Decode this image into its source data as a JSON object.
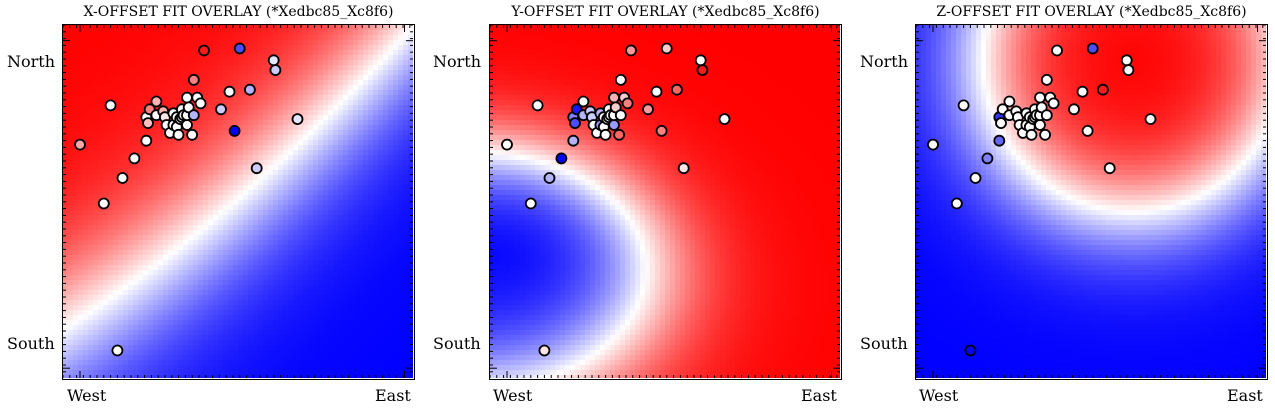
{
  "chart_data": [
    {
      "type": "heatmap",
      "title": "X-OFFSET FIT OVERLAY (*Xedbc85_Xc8f6)",
      "x_tick_labels": [
        "West",
        "East"
      ],
      "y_tick_labels": [
        "North",
        "South"
      ],
      "colormap": [
        "#0000ff",
        "#ffffff",
        "#ff0000"
      ],
      "value_range": [
        -1,
        1
      ],
      "field": {
        "peak_value": 1,
        "peak_location": "top-left",
        "trough_value": -1,
        "trough_location": "bottom-right"
      },
      "points": [
        {
          "x": -0.93,
          "y": 0.47,
          "v": 0.35
        },
        {
          "x": -0.75,
          "y": 0.67,
          "v": 0.0
        },
        {
          "x": -0.79,
          "y": 0.17,
          "v": 0.0
        },
        {
          "x": -0.61,
          "y": 0.4,
          "v": 0.0
        },
        {
          "x": -0.54,
          "y": 0.61,
          "v": 0.0
        },
        {
          "x": -0.54,
          "y": 0.49,
          "v": 0.0
        },
        {
          "x": -0.53,
          "y": 0.58,
          "v": 0.25
        },
        {
          "x": -0.52,
          "y": 0.65,
          "v": 0.5
        },
        {
          "x": -0.48,
          "y": 0.69,
          "v": 0.3
        },
        {
          "x": -0.48,
          "y": 0.62,
          "v": 0.0
        },
        {
          "x": -0.44,
          "y": 0.64,
          "v": 0.3
        },
        {
          "x": -0.43,
          "y": 0.61,
          "v": 0.1
        },
        {
          "x": -0.42,
          "y": 0.57,
          "v": 0.0
        },
        {
          "x": -0.4,
          "y": 0.53,
          "v": 0.0
        },
        {
          "x": -0.38,
          "y": 0.57,
          "v": 0.0
        },
        {
          "x": -0.38,
          "y": 0.63,
          "v": 0.0
        },
        {
          "x": -0.36,
          "y": 0.61,
          "v": 0.0
        },
        {
          "x": -0.36,
          "y": 0.56,
          "v": 0.0
        },
        {
          "x": -0.35,
          "y": 0.52,
          "v": 0.0
        },
        {
          "x": -0.34,
          "y": 0.6,
          "v": 0.0
        },
        {
          "x": -0.33,
          "y": 0.61,
          "v": 0.0
        },
        {
          "x": -0.33,
          "y": 0.65,
          "v": 0.0
        },
        {
          "x": -0.32,
          "y": 0.62,
          "v": 0.1
        },
        {
          "x": -0.3,
          "y": 0.57,
          "v": 0.0
        },
        {
          "x": -0.3,
          "y": 0.62,
          "v": 0.0
        },
        {
          "x": -0.3,
          "y": 0.71,
          "v": 0.0
        },
        {
          "x": -0.29,
          "y": 0.66,
          "v": 0.0
        },
        {
          "x": -0.27,
          "y": 0.52,
          "v": 0.0
        },
        {
          "x": -0.26,
          "y": 0.62,
          "v": -0.3
        },
        {
          "x": -0.26,
          "y": 0.8,
          "v": 0.5
        },
        {
          "x": -0.24,
          "y": 0.71,
          "v": 0.0
        },
        {
          "x": -0.22,
          "y": 0.68,
          "v": 0.0
        },
        {
          "x": -0.2,
          "y": 0.95,
          "v": 0.9
        },
        {
          "x": -0.1,
          "y": 0.65,
          "v": -0.2
        },
        {
          "x": -0.05,
          "y": 0.74,
          "v": 0.0
        },
        {
          "x": -0.02,
          "y": 0.54,
          "v": -1.0
        },
        {
          "x": 0.01,
          "y": 0.96,
          "v": -0.7
        },
        {
          "x": 0.07,
          "y": 0.75,
          "v": -0.3
        },
        {
          "x": 0.11,
          "y": 0.35,
          "v": -0.2
        },
        {
          "x": 0.21,
          "y": 0.9,
          "v": -0.1
        },
        {
          "x": 0.22,
          "y": 0.85,
          "v": -0.2
        },
        {
          "x": 0.35,
          "y": 0.6,
          "v": -0.1
        },
        {
          "x": -0.68,
          "y": 0.3,
          "v": 0.0
        },
        {
          "x": -0.71,
          "y": -0.58,
          "v": 0.0
        }
      ]
    },
    {
      "type": "heatmap",
      "title": "Y-OFFSET FIT OVERLAY (*Xedbc85_Xc8f6)",
      "x_tick_labels": [
        "West",
        "East"
      ],
      "y_tick_labels": [
        "North",
        "South"
      ],
      "colormap": [
        "#0000ff",
        "#ffffff",
        "#ff0000"
      ],
      "value_range": [
        -1,
        1
      ],
      "field": {
        "peak_value": 1,
        "peak_location": "top-right",
        "trough_value": -1,
        "trough_location": "left"
      },
      "points": [
        {
          "x": -0.93,
          "y": 0.47,
          "v": 0.0
        },
        {
          "x": -0.75,
          "y": 0.67,
          "v": 0.0
        },
        {
          "x": -0.79,
          "y": 0.17,
          "v": 0.0
        },
        {
          "x": -0.61,
          "y": 0.4,
          "v": -1.0
        },
        {
          "x": -0.54,
          "y": 0.61,
          "v": -0.5
        },
        {
          "x": -0.54,
          "y": 0.49,
          "v": -0.3
        },
        {
          "x": -0.53,
          "y": 0.58,
          "v": -0.7
        },
        {
          "x": -0.52,
          "y": 0.65,
          "v": -0.9
        },
        {
          "x": -0.48,
          "y": 0.69,
          "v": 0.0
        },
        {
          "x": -0.48,
          "y": 0.62,
          "v": -0.3
        },
        {
          "x": -0.44,
          "y": 0.64,
          "v": -0.2
        },
        {
          "x": -0.43,
          "y": 0.61,
          "v": -0.2
        },
        {
          "x": -0.42,
          "y": 0.57,
          "v": 0.0
        },
        {
          "x": -0.4,
          "y": 0.53,
          "v": 0.0
        },
        {
          "x": -0.38,
          "y": 0.57,
          "v": -0.4
        },
        {
          "x": -0.38,
          "y": 0.63,
          "v": -0.3
        },
        {
          "x": -0.36,
          "y": 0.61,
          "v": 0.0
        },
        {
          "x": -0.36,
          "y": 0.56,
          "v": 0.0
        },
        {
          "x": -0.35,
          "y": 0.52,
          "v": 0.0
        },
        {
          "x": -0.34,
          "y": 0.6,
          "v": 0.0
        },
        {
          "x": -0.33,
          "y": 0.61,
          "v": 0.0
        },
        {
          "x": -0.33,
          "y": 0.65,
          "v": 0.0
        },
        {
          "x": -0.32,
          "y": 0.62,
          "v": 0.0
        },
        {
          "x": -0.3,
          "y": 0.57,
          "v": -0.4
        },
        {
          "x": -0.3,
          "y": 0.62,
          "v": 0.0
        },
        {
          "x": -0.3,
          "y": 0.71,
          "v": 0.3
        },
        {
          "x": -0.29,
          "y": 0.66,
          "v": 0.2
        },
        {
          "x": -0.27,
          "y": 0.52,
          "v": 0.6
        },
        {
          "x": -0.26,
          "y": 0.62,
          "v": 0.0
        },
        {
          "x": -0.26,
          "y": 0.8,
          "v": 0.0
        },
        {
          "x": -0.24,
          "y": 0.71,
          "v": 0.2
        },
        {
          "x": -0.22,
          "y": 0.68,
          "v": 0.5
        },
        {
          "x": -0.2,
          "y": 0.95,
          "v": 0.4
        },
        {
          "x": -0.1,
          "y": 0.65,
          "v": 0.4
        },
        {
          "x": -0.05,
          "y": 0.74,
          "v": 0.0
        },
        {
          "x": -0.02,
          "y": 0.54,
          "v": 0.5
        },
        {
          "x": 0.01,
          "y": 0.96,
          "v": 0.2
        },
        {
          "x": 0.07,
          "y": 0.75,
          "v": 0.6
        },
        {
          "x": 0.11,
          "y": 0.35,
          "v": 0.1
        },
        {
          "x": 0.21,
          "y": 0.9,
          "v": 0.0
        },
        {
          "x": 0.22,
          "y": 0.85,
          "v": 0.9
        },
        {
          "x": 0.35,
          "y": 0.6,
          "v": 0.0
        },
        {
          "x": -0.68,
          "y": 0.3,
          "v": -0.3
        },
        {
          "x": -0.71,
          "y": -0.58,
          "v": 0.1
        }
      ]
    },
    {
      "type": "heatmap",
      "title": "Z-OFFSET FIT OVERLAY (*Xedbc85_Xc8f6)",
      "x_tick_labels": [
        "West",
        "East"
      ],
      "y_tick_labels": [
        "North",
        "South"
      ],
      "colormap": [
        "#0000ff",
        "#ffffff",
        "#ff0000"
      ],
      "value_range": [
        -1,
        1
      ],
      "field": {
        "peak_value": 1,
        "peak_location": "top-center",
        "trough_value": -1,
        "trough_location": "bottom-left"
      },
      "points": [
        {
          "x": -0.93,
          "y": 0.47,
          "v": 0.0
        },
        {
          "x": -0.75,
          "y": 0.67,
          "v": 0.0
        },
        {
          "x": -0.79,
          "y": 0.17,
          "v": 0.0
        },
        {
          "x": -0.61,
          "y": 0.4,
          "v": -0.5
        },
        {
          "x": -0.54,
          "y": 0.61,
          "v": -0.8
        },
        {
          "x": -0.54,
          "y": 0.49,
          "v": -0.6
        },
        {
          "x": -0.53,
          "y": 0.58,
          "v": 0.0
        },
        {
          "x": -0.52,
          "y": 0.65,
          "v": 0.0
        },
        {
          "x": -0.48,
          "y": 0.69,
          "v": 0.0
        },
        {
          "x": -0.48,
          "y": 0.62,
          "v": 0.0
        },
        {
          "x": -0.44,
          "y": 0.64,
          "v": 0.0
        },
        {
          "x": -0.43,
          "y": 0.61,
          "v": 0.0
        },
        {
          "x": -0.42,
          "y": 0.57,
          "v": 0.0
        },
        {
          "x": -0.4,
          "y": 0.53,
          "v": 0.0
        },
        {
          "x": -0.38,
          "y": 0.57,
          "v": 0.0
        },
        {
          "x": -0.38,
          "y": 0.63,
          "v": 0.0
        },
        {
          "x": -0.36,
          "y": 0.61,
          "v": 0.0
        },
        {
          "x": -0.36,
          "y": 0.56,
          "v": 0.0
        },
        {
          "x": -0.35,
          "y": 0.52,
          "v": 0.0
        },
        {
          "x": -0.34,
          "y": 0.6,
          "v": 0.0
        },
        {
          "x": -0.33,
          "y": 0.61,
          "v": 0.0
        },
        {
          "x": -0.33,
          "y": 0.65,
          "v": 0.0
        },
        {
          "x": -0.32,
          "y": 0.62,
          "v": 0.0
        },
        {
          "x": -0.3,
          "y": 0.57,
          "v": 0.0
        },
        {
          "x": -0.3,
          "y": 0.62,
          "v": 0.0
        },
        {
          "x": -0.3,
          "y": 0.71,
          "v": 0.0
        },
        {
          "x": -0.29,
          "y": 0.66,
          "v": 0.0
        },
        {
          "x": -0.27,
          "y": 0.52,
          "v": 0.0
        },
        {
          "x": -0.26,
          "y": 0.62,
          "v": 0.0
        },
        {
          "x": -0.26,
          "y": 0.8,
          "v": 0.0
        },
        {
          "x": -0.24,
          "y": 0.71,
          "v": 0.0
        },
        {
          "x": -0.22,
          "y": 0.68,
          "v": 0.0
        },
        {
          "x": -0.2,
          "y": 0.95,
          "v": 0.0
        },
        {
          "x": -0.1,
          "y": 0.65,
          "v": 0.0
        },
        {
          "x": -0.05,
          "y": 0.74,
          "v": 0.0
        },
        {
          "x": -0.02,
          "y": 0.54,
          "v": 0.0
        },
        {
          "x": 0.01,
          "y": 0.96,
          "v": -0.7
        },
        {
          "x": 0.07,
          "y": 0.75,
          "v": 0.9
        },
        {
          "x": 0.11,
          "y": 0.35,
          "v": 0.0
        },
        {
          "x": 0.21,
          "y": 0.9,
          "v": 0.0
        },
        {
          "x": 0.22,
          "y": 0.85,
          "v": 0.0
        },
        {
          "x": 0.35,
          "y": 0.6,
          "v": 0.0
        },
        {
          "x": -0.68,
          "y": 0.3,
          "v": 0.0
        },
        {
          "x": -0.71,
          "y": -0.58,
          "v": -1.0
        }
      ]
    }
  ]
}
